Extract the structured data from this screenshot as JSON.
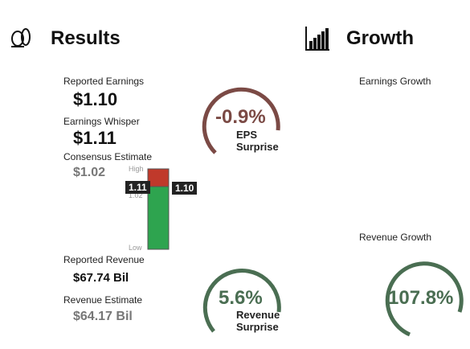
{
  "results": {
    "title": "Results",
    "reported_earnings": {
      "label": "Reported Earnings",
      "value": "$1.10"
    },
    "earnings_whisper": {
      "label": "Earnings Whisper",
      "value": "$1.11"
    },
    "consensus_estimate": {
      "label": "Consensus Estimate",
      "value": "$1.02"
    },
    "range": {
      "high": "High",
      "low": "Low",
      "whisper": "1.11",
      "consensus": "1.02",
      "reported": "1.10"
    },
    "eps_surprise": {
      "value": "-0.9%",
      "label": "EPS Surprise"
    },
    "reported_revenue": {
      "label": "Reported Revenue",
      "value": "$67.74 Bil"
    },
    "revenue_estimate": {
      "label": "Revenue Estimate",
      "value": "$64.17 Bil"
    },
    "revenue_surprise": {
      "value": "5.6%",
      "label": "Revenue Surprise"
    }
  },
  "growth": {
    "title": "Growth",
    "earnings_growth": {
      "label": "Earnings Growth"
    },
    "revenue_growth": {
      "label": "Revenue Growth",
      "value": "107.8%"
    }
  }
}
